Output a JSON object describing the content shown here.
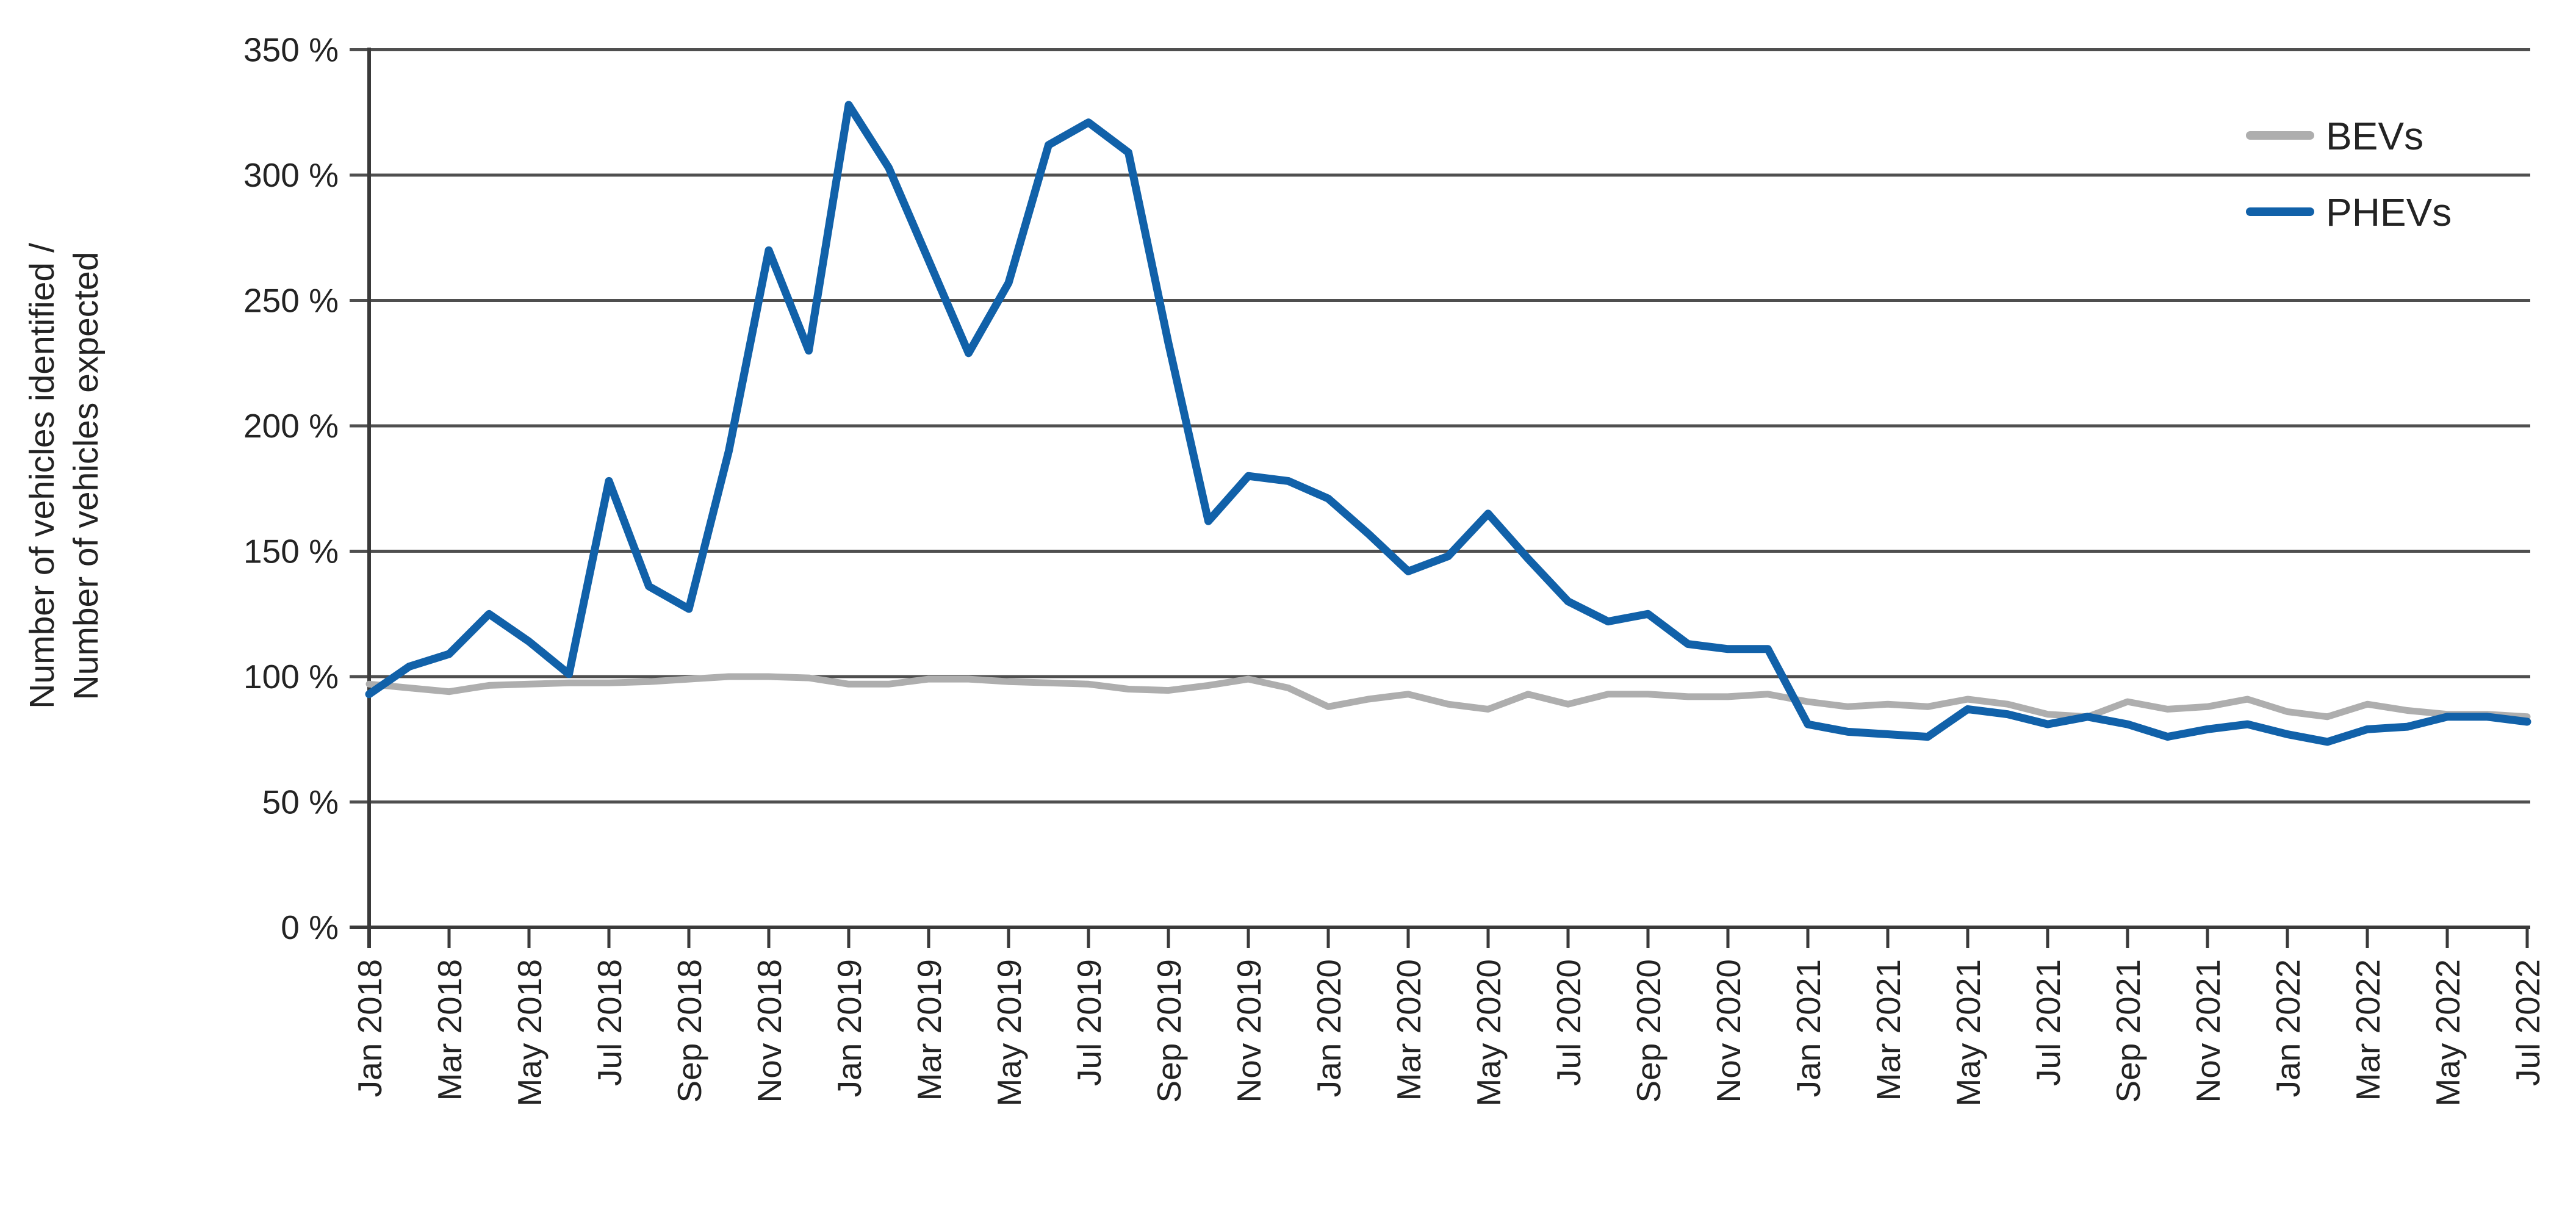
{
  "chart_data": {
    "type": "line",
    "title": "",
    "ylabel_line1": "Number of vehicles identified /",
    "ylabel_line2": "Number of vehicles expected",
    "grid": true,
    "legend_position": "top-right",
    "ylim": [
      0,
      350
    ],
    "y_tick_labels": [
      "0 %",
      "50 %",
      "100 %",
      "150 %",
      "200 %",
      "250 %",
      "300 %",
      "350 %"
    ],
    "x_tick_label_step": 2,
    "x": [
      "Jan 2018",
      "Feb 2018",
      "Mar 2018",
      "Apr 2018",
      "May 2018",
      "Jun 2018",
      "Jul 2018",
      "Aug 2018",
      "Sep 2018",
      "Oct 2018",
      "Nov 2018",
      "Dec 2018",
      "Jan 2019",
      "Feb 2019",
      "Mar 2019",
      "Apr 2019",
      "May 2019",
      "Jun 2019",
      "Jul 2019",
      "Aug 2019",
      "Sep 2019",
      "Oct 2019",
      "Nov 2019",
      "Dec 2019",
      "Jan 2020",
      "Feb 2020",
      "Mar 2020",
      "Apr 2020",
      "May 2020",
      "Jun 2020",
      "Jul 2020",
      "Aug 2020",
      "Sep 2020",
      "Oct 2020",
      "Nov 2020",
      "Dec 2020",
      "Jan 2021",
      "Feb 2021",
      "Mar 2021",
      "Apr 2021",
      "May 2021",
      "Jun 2021",
      "Jul 2021",
      "Aug 2021",
      "Sep 2021",
      "Oct 2021",
      "Nov 2021",
      "Dec 2021",
      "Jan 2022",
      "Feb 2022",
      "Mar 2022",
      "Apr 2022",
      "May 2022",
      "Jun 2022",
      "Jul 2022"
    ],
    "series": [
      {
        "name": "BEVs",
        "color": "#aeaeae",
        "values": [
          97,
          95.5,
          94,
          96.5,
          97,
          97.5,
          97.5,
          98,
          99,
          100,
          100,
          99.5,
          97,
          97,
          99,
          99,
          98,
          97.5,
          97,
          95,
          94.5,
          96.5,
          99,
          95.5,
          88,
          91,
          93,
          89,
          87,
          93,
          89,
          93,
          93,
          92,
          92,
          93,
          90,
          88,
          89,
          88,
          91,
          89,
          85,
          84,
          90,
          87,
          88,
          91,
          86,
          84,
          89,
          86.5,
          85,
          85,
          84
        ]
      },
      {
        "name": "PHEVs",
        "color": "#1161a9",
        "values": [
          93,
          104,
          109,
          125,
          114,
          101,
          178,
          136,
          127,
          190,
          270,
          230,
          328,
          303,
          266,
          229,
          257,
          312,
          321,
          309,
          233,
          162,
          180,
          178,
          171,
          157,
          142,
          148,
          165,
          147,
          130,
          122,
          125,
          113,
          111,
          111,
          81,
          78,
          77,
          76,
          87,
          85,
          81,
          84,
          81,
          76,
          79,
          81,
          77,
          74,
          79,
          80,
          84,
          84,
          82
        ]
      }
    ]
  }
}
